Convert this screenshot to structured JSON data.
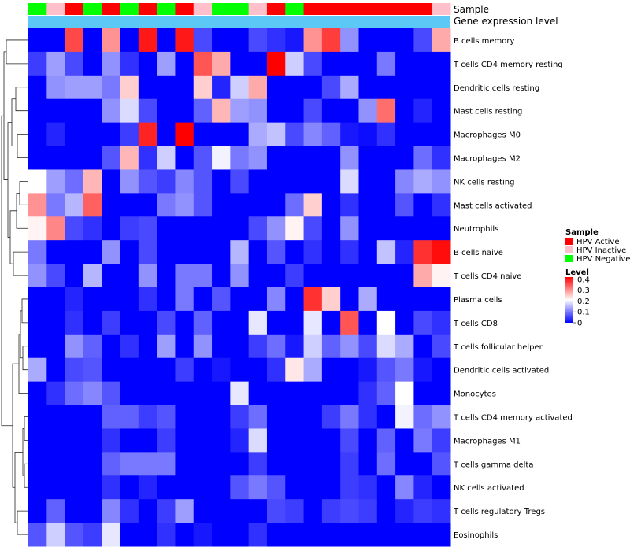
{
  "chart_data": {
    "type": "heatmap",
    "annotation_tracks": [
      "Sample",
      "Gene expression level"
    ],
    "sample_groups": [
      "HPV Negative",
      "HPV Inactive",
      "HPV Active",
      "HPV Negative",
      "HPV Active",
      "HPV Negative",
      "HPV Active",
      "HPV Negative",
      "HPV Active",
      "HPV Inactive",
      "HPV Negative",
      "HPV Negative",
      "HPV Inactive",
      "HPV Active",
      "HPV Negative",
      "HPV Active",
      "HPV Active",
      "HPV Active",
      "HPV Active",
      "HPV Active",
      "HPV Active",
      "HPV Active",
      "HPV Inactive"
    ],
    "sample_legend": {
      "title": "Sample",
      "entries": [
        {
          "label": "HPV Active",
          "color": "#FF0000"
        },
        {
          "label": "HPV Inactive",
          "color": "#FFC0CB"
        },
        {
          "label": "HPV Negative",
          "color": "#00FF00"
        }
      ]
    },
    "level_legend": {
      "title": "Level",
      "ticks": [
        "0.4",
        "0.3",
        "0.2",
        "0.1",
        "0"
      ],
      "tick_values": [
        0.4,
        0.3,
        0.2,
        0.1,
        0
      ],
      "range": [
        0,
        0.42
      ],
      "colors": [
        "#0000FF",
        "#FFFFFF",
        "#FF0000"
      ]
    },
    "gene_expression_color": "#5BC8F5",
    "rows": [
      "B cells memory",
      "T cells CD4 memory resting",
      "Dendritic cells resting",
      "Mast cells resting",
      "Macrophages M0",
      "Macrophages M2",
      "NK cells resting",
      "Mast cells activated",
      "Neutrophils",
      "B cells naive",
      "T cells CD4 naive",
      "Plasma cells",
      "T cells CD8",
      "T cells follicular helper",
      "Dendritic cells activated",
      "Monocytes",
      "T cells CD4 memory activated",
      "Macrophages M1",
      "T cells gamma delta",
      "NK cells activated",
      "T cells regulatory  Tregs",
      "Eosinophils"
    ],
    "values": [
      [
        0,
        0,
        0.36,
        0,
        0.3,
        0,
        0.4,
        0,
        0.4,
        0.06,
        0,
        0,
        0.06,
        0.04,
        0.02,
        0.3,
        0.37,
        0.12,
        0,
        0,
        0,
        0.06,
        0.28
      ],
      [
        0.05,
        0.13,
        0.06,
        0,
        0.12,
        0.04,
        0,
        0.13,
        0,
        0.35,
        0.28,
        0,
        0,
        0.42,
        0.17,
        0.06,
        0,
        0,
        0,
        0.1,
        0,
        0,
        0
      ],
      [
        0,
        0.12,
        0.13,
        0.13,
        0.1,
        0.25,
        0,
        0,
        0,
        0.25,
        0.03,
        0.17,
        0.28,
        0,
        0,
        0,
        0.06,
        0.14,
        0,
        0,
        0,
        0,
        0
      ],
      [
        0,
        0,
        0,
        0,
        0.12,
        0.18,
        0.06,
        0,
        0,
        0.08,
        0.27,
        0.13,
        0.12,
        0,
        0,
        0.06,
        0,
        0,
        0.12,
        0.33,
        0,
        0.03,
        0
      ],
      [
        0,
        0.03,
        0,
        0,
        0,
        0.05,
        0.39,
        0,
        0.42,
        0,
        0,
        0,
        0.14,
        0.16,
        0.06,
        0.11,
        0.08,
        0.02,
        0.01,
        0.04,
        0,
        0,
        0
      ],
      [
        0,
        0,
        0,
        0,
        0.07,
        0.27,
        0.04,
        0.17,
        0,
        0.07,
        0.2,
        0.1,
        0.12,
        0,
        0,
        0,
        0,
        0.12,
        0,
        0,
        0,
        0.09,
        0.04
      ],
      [
        0.21,
        0.13,
        0.09,
        0.27,
        0,
        0.12,
        0.07,
        0.05,
        0.11,
        0.07,
        0,
        0.06,
        0,
        0,
        0,
        0,
        0,
        0.18,
        0,
        0,
        0.11,
        0.14,
        0.12
      ],
      [
        0.3,
        0.1,
        0.15,
        0.34,
        0,
        0,
        0,
        0.1,
        0.12,
        0.07,
        0,
        0,
        0,
        0,
        0.09,
        0.25,
        0,
        0.04,
        0,
        0,
        0.07,
        0,
        0.04
      ],
      [
        0.22,
        0.31,
        0.06,
        0.04,
        0,
        0.05,
        0.06,
        0,
        0,
        0,
        0,
        0,
        0.06,
        0.12,
        0.22,
        0.06,
        0,
        0.12,
        0,
        0,
        0,
        0,
        0
      ],
      [
        0.1,
        0,
        0,
        0,
        0.12,
        0,
        0.06,
        0,
        0,
        0,
        0,
        0.15,
        0,
        0.07,
        0,
        0.04,
        0,
        0.04,
        0,
        0.16,
        0.03,
        0.38,
        0.41
      ],
      [
        0.12,
        0.06,
        0,
        0.15,
        0,
        0,
        0.12,
        0,
        0.1,
        0.1,
        0,
        0.12,
        0,
        0,
        0.05,
        0,
        0,
        0,
        0,
        0,
        0,
        0.28,
        0.22
      ],
      [
        0,
        0,
        0.03,
        0,
        0,
        0,
        0.04,
        0,
        0.1,
        0,
        0.07,
        0,
        0,
        0.11,
        0,
        0.38,
        0.25,
        0,
        0.14,
        0,
        0,
        0,
        0
      ],
      [
        0,
        0,
        0.04,
        0,
        0.05,
        0,
        0,
        0.06,
        0,
        0.08,
        0,
        0,
        0.19,
        0,
        0,
        0.19,
        0,
        0.35,
        0,
        0.21,
        0,
        0.06,
        0.04
      ],
      [
        0,
        0,
        0.12,
        0.08,
        0,
        0.04,
        0,
        0.13,
        0,
        0.12,
        0,
        0,
        0.05,
        0.09,
        0.02,
        0.17,
        0.08,
        0.12,
        0.06,
        0.18,
        0.14,
        0,
        0.06
      ],
      [
        0.14,
        0,
        0.06,
        0.07,
        0,
        0,
        0,
        0,
        0.05,
        0,
        0.02,
        0,
        0,
        0.04,
        0.23,
        0.14,
        0,
        0,
        0.02,
        0.07,
        0.1,
        0.02,
        0
      ],
      [
        0,
        0.04,
        0.09,
        0.11,
        0.07,
        0,
        0,
        0,
        0,
        0,
        0,
        0.19,
        0,
        0,
        0,
        0,
        0,
        0,
        0.04,
        0.08,
        0.21,
        0,
        0
      ],
      [
        0,
        0,
        0,
        0,
        0.08,
        0.08,
        0.05,
        0.07,
        0,
        0,
        0,
        0.05,
        0.09,
        0,
        0,
        0,
        0.05,
        0.1,
        0.04,
        0,
        0.2,
        0.09,
        0.12
      ],
      [
        0,
        0,
        0,
        0,
        0.04,
        0,
        0,
        0.05,
        0,
        0,
        0,
        0.03,
        0.18,
        0,
        0,
        0,
        0,
        0.06,
        0,
        0.08,
        0,
        0.1,
        0.05
      ],
      [
        0,
        0,
        0,
        0,
        0.08,
        0.1,
        0.1,
        0.1,
        0,
        0,
        0,
        0,
        0.05,
        0,
        0,
        0,
        0,
        0.05,
        0,
        0.09,
        0,
        0,
        0.07
      ],
      [
        0,
        0,
        0,
        0,
        0.04,
        0,
        0.03,
        0,
        0,
        0,
        0,
        0.07,
        0.1,
        0.07,
        0,
        0,
        0,
        0.05,
        0.04,
        0,
        0.11,
        0.03,
        0
      ],
      [
        0,
        0.08,
        0,
        0,
        0.11,
        0.04,
        0,
        0.05,
        0.13,
        0,
        0,
        0,
        0,
        0.06,
        0.05,
        0,
        0.05,
        0.06,
        0.05,
        0,
        0.03,
        0.05,
        0.04
      ],
      [
        0.07,
        0.17,
        0.07,
        0.05,
        0.19,
        0,
        0,
        0.04,
        0,
        0.02,
        0,
        0,
        0.04,
        0,
        0,
        0,
        0,
        0,
        0,
        0,
        0,
        0,
        0
      ]
    ]
  }
}
